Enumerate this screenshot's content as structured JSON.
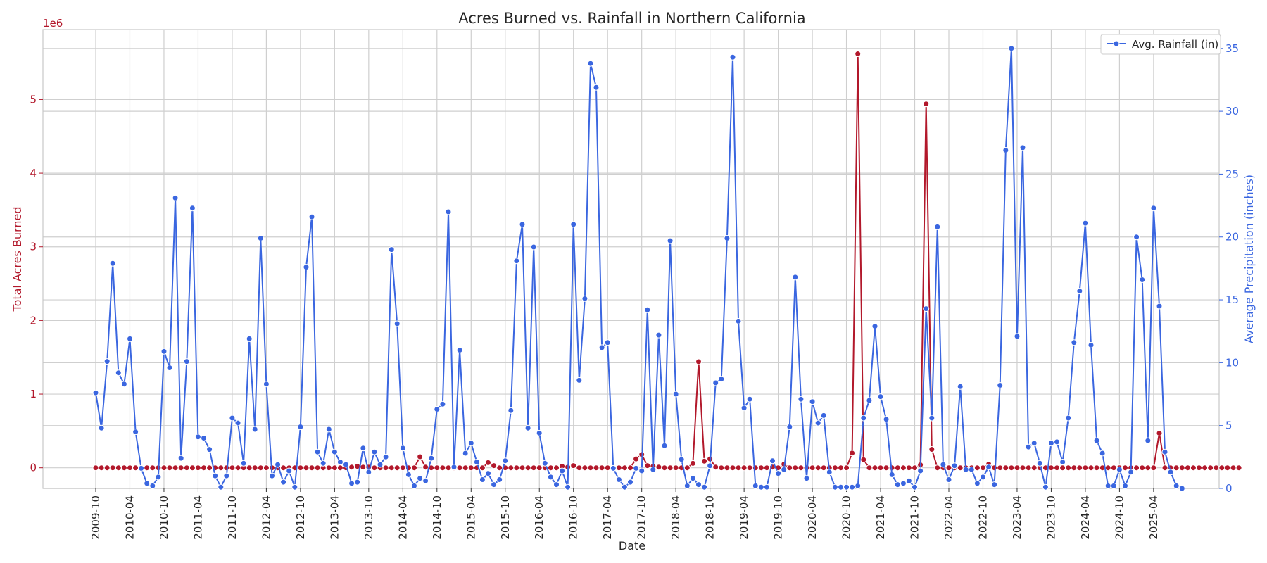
{
  "colors": {
    "acres": "#b2182b",
    "rain": "#3a66e0",
    "grid": "#cfcfcf",
    "frame": "#c7c7c7",
    "text": "#262626"
  },
  "chart_data": {
    "type": "line",
    "title": "Acres Burned vs. Rainfall in Northern California",
    "xlabel": "Date",
    "x_ticks": [
      "2009-10",
      "2010-04",
      "2010-10",
      "2011-04",
      "2011-10",
      "2012-04",
      "2012-10",
      "2013-04",
      "2013-10",
      "2014-04",
      "2014-10",
      "2015-04",
      "2015-10",
      "2016-04",
      "2016-10",
      "2017-04",
      "2017-10",
      "2018-04",
      "2018-10",
      "2019-04",
      "2019-10",
      "2020-04",
      "2020-10",
      "2021-04",
      "2021-10",
      "2022-04",
      "2022-10",
      "2023-04",
      "2023-10",
      "2024-04",
      "2024-10",
      "2025-04"
    ],
    "x_start": "2009-10",
    "grid": true,
    "legend": {
      "position": "top-right",
      "entries": [
        "Avg. Rainfall (in)"
      ]
    },
    "y_left": {
      "label": "Total Acres Burned",
      "offset_text": "1e6",
      "ticks": [
        0,
        1,
        2,
        3,
        4,
        5
      ],
      "range": [
        -0.28,
        5.95
      ],
      "scale": "×1e6"
    },
    "y_right": {
      "label": "Average Precipitation (inches)",
      "ticks": [
        0,
        5,
        10,
        15,
        20,
        25,
        30,
        35
      ],
      "range": [
        0,
        36.5
      ]
    },
    "series": [
      {
        "name": "Total Acres Burned",
        "axis": "left",
        "unit": "millions of acres",
        "values": [
          0.0,
          0.0,
          0.0,
          0.0,
          0.0,
          0.0,
          0.0,
          0.0,
          0.0,
          0.0,
          0.0,
          0.0,
          0.0,
          0.0,
          0.0,
          0.0,
          0.0,
          0.0,
          0.0,
          0.0,
          0.0,
          0.0,
          0.0,
          0.0,
          0.0,
          0.0,
          0.0,
          0.0,
          0.0,
          0.0,
          0.0,
          0.0,
          0.0,
          0.0,
          0.0,
          0.0,
          0.0,
          0.0,
          0.0,
          0.0,
          0.0,
          0.0,
          0.0,
          0.0,
          0.0,
          0.01,
          0.02,
          0.01,
          0.01,
          0.0,
          0.0,
          0.0,
          0.0,
          0.0,
          0.0,
          0.0,
          0.0,
          0.15,
          0.01,
          0.0,
          0.0,
          0.0,
          0.0,
          0.0,
          0.0,
          0.0,
          0.0,
          0.0,
          0.0,
          0.07,
          0.03,
          0.0,
          0.0,
          0.0,
          0.0,
          0.0,
          0.0,
          0.0,
          0.0,
          0.0,
          0.0,
          0.0,
          0.02,
          0.01,
          0.03,
          0.0,
          0.0,
          0.0,
          0.0,
          0.0,
          0.0,
          0.0,
          0.0,
          0.0,
          0.0,
          0.12,
          0.18,
          0.03,
          0.02,
          0.01,
          0.0,
          0.0,
          0.0,
          0.0,
          0.0,
          0.06,
          1.44,
          0.09,
          0.12,
          0.01,
          0.0,
          0.0,
          0.0,
          0.0,
          0.0,
          0.0,
          0.0,
          0.0,
          0.0,
          0.01,
          0.0,
          0.05,
          0.0,
          0.0,
          0.0,
          0.0,
          0.0,
          0.0,
          0.0,
          0.0,
          0.0,
          0.0,
          0.0,
          0.2,
          5.62,
          0.11,
          0.0,
          0.0,
          0.0,
          0.0,
          0.0,
          0.0,
          0.0,
          0.0,
          0.0,
          0.04,
          4.94,
          0.25,
          0.0,
          0.0,
          0.0,
          0.0,
          0.0,
          0.0,
          0.0,
          0.0,
          0.0,
          0.05,
          0.0,
          0.0,
          0.0,
          0.0,
          0.0,
          0.0,
          0.0,
          0.0,
          0.0,
          0.0,
          0.0,
          0.0,
          0.0,
          0.0,
          0.0,
          0.0,
          0.0,
          0.0,
          0.0,
          0.0,
          0.0,
          0.0,
          0.0,
          0.0,
          0.0,
          0.0,
          0.0,
          0.0,
          0.0,
          0.47,
          0.0,
          0.0,
          0.0,
          0.0,
          0.0,
          0.0,
          0.0,
          0.0,
          0.0,
          0.0,
          0.0,
          0.0,
          0.0,
          0.0
        ]
      },
      {
        "name": "Avg. Rainfall (in)",
        "axis": "right",
        "unit": "inches",
        "values": [
          7.6,
          4.8,
          10.1,
          17.9,
          9.2,
          8.3,
          11.9,
          4.5,
          1.6,
          0.4,
          0.2,
          0.9,
          10.9,
          9.6,
          23.1,
          2.4,
          10.1,
          22.3,
          4.1,
          4.0,
          3.1,
          1.0,
          0.1,
          1.0,
          5.6,
          5.2,
          2.0,
          11.9,
          4.7,
          19.9,
          8.3,
          1.0,
          1.9,
          0.5,
          1.4,
          0.1,
          4.9,
          17.6,
          21.6,
          2.9,
          2.0,
          4.7,
          2.9,
          2.1,
          1.9,
          0.4,
          0.5,
          3.2,
          1.3,
          2.9,
          1.9,
          2.5,
          19.0,
          13.1,
          3.2,
          1.1,
          0.2,
          0.8,
          0.6,
          2.4,
          6.3,
          6.7,
          22.0,
          1.7,
          11.0,
          2.8,
          3.6,
          2.1,
          0.7,
          1.2,
          0.3,
          0.7,
          2.2,
          6.2,
          18.1,
          21.0,
          4.8,
          19.2,
          4.4,
          2.0,
          0.9,
          0.3,
          1.4,
          0.1,
          21.0,
          8.6,
          15.1,
          33.8,
          31.9,
          11.2,
          11.6,
          1.6,
          0.7,
          0.1,
          0.5,
          1.6,
          1.4,
          14.2,
          1.5,
          12.2,
          3.4,
          19.7,
          7.5,
          2.3,
          0.2,
          0.8,
          0.3,
          0.1,
          1.8,
          8.4,
          8.7,
          19.9,
          34.3,
          13.3,
          6.4,
          7.1,
          0.2,
          0.1,
          0.1,
          2.2,
          1.2,
          1.5,
          4.9,
          16.8,
          7.1,
          0.8,
          6.9,
          5.2,
          5.8,
          1.3,
          0.1,
          0.1,
          0.1,
          0.1,
          0.2,
          5.6,
          7.0,
          12.9,
          7.3,
          5.5,
          1.1,
          0.3,
          0.4,
          0.6,
          0.1,
          1.4,
          14.3,
          5.6,
          20.8,
          1.9,
          0.7,
          1.8,
          8.1,
          1.5,
          1.5,
          0.4,
          0.9,
          1.7,
          0.3,
          8.2,
          26.9,
          35.0,
          12.1,
          27.1,
          3.3,
          3.6,
          2.0,
          0.1,
          3.6,
          3.7,
          2.1,
          5.6,
          11.6,
          15.7,
          21.1,
          11.4,
          3.8,
          2.8,
          0.2,
          0.2,
          1.5,
          0.2,
          1.3,
          20.0,
          16.6,
          3.8,
          22.3,
          14.5,
          2.9,
          1.3,
          0.2,
          0.0
        ]
      }
    ]
  }
}
